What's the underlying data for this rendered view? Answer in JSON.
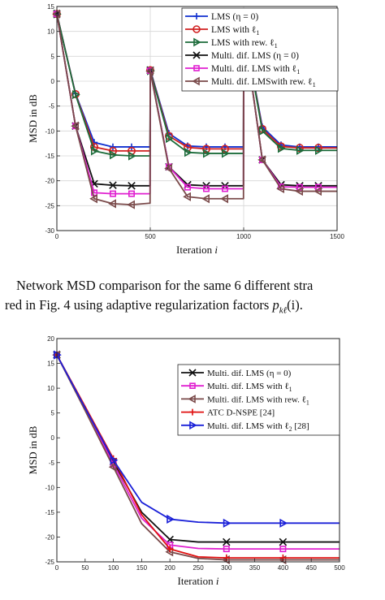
{
  "caption": {
    "line1": "Network MSD comparison for the same 6 different stra",
    "line2": "red in Fig. 4 using adaptive regularization factors ",
    "line2_math": "p",
    "line2_sub": "kℓ",
    "line2_end": "(i)."
  },
  "chart_data": [
    {
      "type": "line",
      "xlabel": "Iteration i",
      "ylabel": "MSD in dB",
      "xlim": [
        0,
        1500
      ],
      "ylim": [
        -30,
        15
      ],
      "xticks": [
        0,
        500,
        1000,
        1500
      ],
      "yticks": [
        15,
        10,
        5,
        0,
        -5,
        -10,
        -15,
        -20,
        -25,
        -30
      ],
      "grid": true,
      "legend_position": "top-right",
      "series": [
        {
          "name": "LMS (η = 0)",
          "color": "#1030d0",
          "marker": "plus",
          "x": [
            0,
            100,
            200,
            300,
            400,
            499,
            500,
            600,
            700,
            800,
            900,
            999,
            1000,
            1100,
            1200,
            1300,
            1400,
            1500
          ],
          "y": [
            13.5,
            -2.5,
            -12.3,
            -13.2,
            -13.2,
            -13.2,
            2.3,
            -10.5,
            -13.0,
            -13.2,
            -13.2,
            -13.2,
            11.0,
            -9.2,
            -12.8,
            -13.2,
            -13.2,
            -13.2
          ]
        },
        {
          "name": "LMS with ℓ1",
          "color": "#d02020",
          "marker": "circle",
          "x": [
            0,
            100,
            200,
            300,
            400,
            499,
            500,
            600,
            700,
            800,
            900,
            999,
            1000,
            1100,
            1200,
            1300,
            1400,
            1500
          ],
          "y": [
            13.5,
            -2.6,
            -13.2,
            -14.0,
            -14.0,
            -14.0,
            2.2,
            -11.0,
            -13.3,
            -13.6,
            -13.6,
            -13.6,
            11.0,
            -9.6,
            -13.1,
            -13.4,
            -13.4,
            -13.4
          ]
        },
        {
          "name": "LMS with rew. ℓ1",
          "color": "#1c6b3a",
          "marker": "triangle-right",
          "x": [
            0,
            100,
            200,
            300,
            400,
            499,
            500,
            600,
            700,
            800,
            900,
            999,
            1000,
            1100,
            1200,
            1300,
            1400,
            1500
          ],
          "y": [
            13.5,
            -2.7,
            -14.0,
            -14.8,
            -15.0,
            -15.0,
            2.1,
            -11.5,
            -14.3,
            -14.5,
            -14.5,
            -14.5,
            11.0,
            -10.0,
            -13.5,
            -13.9,
            -13.9,
            -13.9
          ]
        },
        {
          "name": "Multi. dif. LMS (η = 0)",
          "color": "#111111",
          "marker": "x",
          "x": [
            0,
            100,
            200,
            300,
            400,
            499,
            500,
            600,
            700,
            800,
            900,
            999,
            1000,
            1100,
            1200,
            1300,
            1400,
            1500
          ],
          "y": [
            13.5,
            -9.0,
            -20.6,
            -20.9,
            -21.0,
            -21.0,
            2.2,
            -17.2,
            -20.8,
            -21.0,
            -21.0,
            -21.0,
            11.0,
            -15.8,
            -20.8,
            -21.0,
            -21.0,
            -21.0
          ]
        },
        {
          "name": "Multi. dif. LMS with ℓ1",
          "color": "#e020d0",
          "marker": "square",
          "x": [
            0,
            100,
            200,
            300,
            400,
            499,
            500,
            600,
            700,
            800,
            900,
            999,
            1000,
            1100,
            1200,
            1300,
            1400,
            1500
          ],
          "y": [
            13.5,
            -9.0,
            -22.4,
            -22.6,
            -22.6,
            -22.6,
            2.1,
            -17.2,
            -21.3,
            -21.6,
            -21.6,
            -21.6,
            11.0,
            -15.8,
            -21.2,
            -21.3,
            -21.3,
            -21.3
          ]
        },
        {
          "name": "Multi. dif. LMSwith rew. ℓ1",
          "color": "#7a4a4a",
          "marker": "triangle-left",
          "x": [
            0,
            100,
            200,
            300,
            400,
            499,
            500,
            600,
            700,
            800,
            900,
            999,
            1000,
            1100,
            1200,
            1300,
            1400,
            1500
          ],
          "y": [
            13.5,
            -9.0,
            -23.6,
            -24.6,
            -24.8,
            -24.5,
            2.0,
            -17.5,
            -23.2,
            -23.6,
            -23.6,
            -23.6,
            11.0,
            -15.8,
            -21.6,
            -22.1,
            -22.1,
            -22.1
          ]
        }
      ]
    },
    {
      "type": "line",
      "xlabel": "Iteration i",
      "ylabel": "MSD in dB",
      "xlim": [
        0,
        500
      ],
      "ylim": [
        -25,
        20
      ],
      "xticks": [
        0,
        50,
        100,
        150,
        200,
        250,
        300,
        350,
        400,
        450,
        500
      ],
      "yticks": [
        20,
        15,
        10,
        5,
        0,
        -5,
        -10,
        -15,
        -20,
        -25
      ],
      "grid": false,
      "legend_position": "top-right",
      "series": [
        {
          "name": "Multi. dif. LMS (η = 0)",
          "color": "#111111",
          "marker": "x",
          "x": [
            0,
            50,
            100,
            150,
            200,
            250,
            300,
            350,
            400,
            450,
            500
          ],
          "y": [
            16.7,
            6.0,
            -4.8,
            -15.0,
            -20.5,
            -21.0,
            -21.0,
            -21.0,
            -21.0,
            -21.0,
            -21.0
          ]
        },
        {
          "name": "Multi. dif. LMS with ℓ1",
          "color": "#e020d0",
          "marker": "square",
          "x": [
            0,
            50,
            100,
            150,
            200,
            250,
            300,
            350,
            400,
            450,
            500
          ],
          "y": [
            16.7,
            5.8,
            -5.3,
            -16.2,
            -21.6,
            -22.3,
            -22.4,
            -22.4,
            -22.4,
            -22.4,
            -22.4
          ]
        },
        {
          "name": "Multi. dif. LMS with rew. ℓ1",
          "color": "#7a4a4a",
          "marker": "triangle-left",
          "x": [
            0,
            50,
            100,
            150,
            200,
            250,
            300,
            350,
            400,
            450,
            500
          ],
          "y": [
            16.7,
            5.5,
            -5.9,
            -17.3,
            -23.0,
            -24.3,
            -24.6,
            -24.6,
            -24.6,
            -24.6,
            -24.6
          ]
        },
        {
          "name": "ATC D-NSPE [24]",
          "color": "#e01010",
          "marker": "plus",
          "x": [
            0,
            50,
            100,
            150,
            200,
            250,
            300,
            350,
            400,
            450,
            500
          ],
          "y": [
            16.7,
            6.3,
            -4.2,
            -15.5,
            -22.4,
            -24.0,
            -24.2,
            -24.2,
            -24.2,
            -24.2,
            -24.2
          ]
        },
        {
          "name": "Multi. dif. LMS with ℓ2 [28]",
          "color": "#1a20d8",
          "marker": "triangle-right",
          "x": [
            0,
            50,
            100,
            150,
            200,
            250,
            300,
            350,
            400,
            450,
            500
          ],
          "y": [
            16.7,
            6.0,
            -4.5,
            -13.0,
            -16.4,
            -17.0,
            -17.2,
            -17.2,
            -17.2,
            -17.2,
            -17.2
          ]
        }
      ]
    }
  ]
}
